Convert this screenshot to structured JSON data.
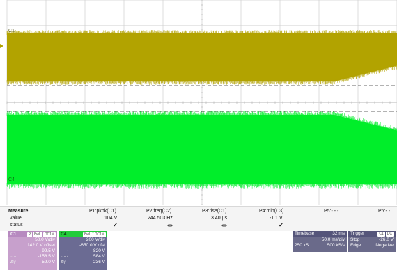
{
  "waveform": {
    "c1_label": "C1",
    "c4_label": "C4"
  },
  "measure": {
    "title": "Measure",
    "row_value": "value",
    "row_status": "status",
    "params": [
      {
        "name": "P1:pkpk(C1)",
        "value": "104 V",
        "status": "✔"
      },
      {
        "name": "P2:freq(C2)",
        "value": "244.503 Hz",
        "status": "⏛"
      },
      {
        "name": "P3:rise(C1)",
        "value": "3.40 µs",
        "status": "⏛"
      },
      {
        "name": "P4:min(C3)",
        "value": "-1.1 V",
        "status": "✔"
      },
      {
        "name": "P5:- - -",
        "value": "",
        "status": ""
      },
      {
        "name": "P6:- -",
        "value": "",
        "status": ""
      }
    ]
  },
  "channels": {
    "c1": {
      "label": "C1",
      "tags": [
        "P",
        "BwL",
        "DC1M"
      ],
      "vdiv": "50.0 V/div",
      "offset": "142.0 V offset",
      "r1": "-99.5 V",
      "r2": "-158.5 V",
      "r3": "-59.0 V",
      "r3_label": "Δy"
    },
    "c4": {
      "label": "C4",
      "tags": [
        "BwL",
        "DC1M"
      ],
      "vdiv": "200 V/div",
      "offset": "-650.0 V ofst",
      "r1": "820 V",
      "r2": "584 V",
      "r3": "-236 V",
      "r3_label": "Δy"
    }
  },
  "timebase": {
    "title": "Timebase",
    "offset": "32 ms",
    "tdiv": "50.0 ms/div",
    "samples": "250 kS",
    "rate": "500 kS/s"
  },
  "trigger": {
    "title": "Trigger",
    "tags": [
      "C1",
      "DC"
    ],
    "mode": "Stop",
    "level": "-26.0 V",
    "type": "Edge",
    "slope": "Negative"
  },
  "colors": {
    "c1": "#b2a300",
    "c4": "#00ee2a",
    "c1_panel": "#c7a0cc",
    "c4_panel": "#6b6b93",
    "grid": "#cfcfcf"
  }
}
